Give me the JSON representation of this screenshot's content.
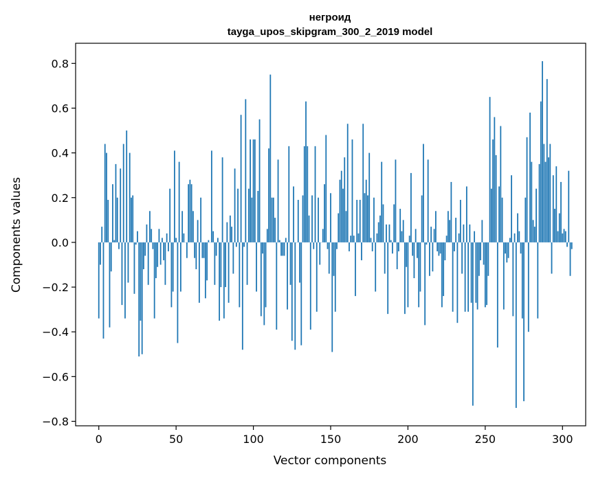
{
  "chart_data": {
    "type": "bar",
    "title": "негроид",
    "subtitle": "tayga_upos_skipgram_300_2_2019 model",
    "xlabel": "Vector components",
    "ylabel": "Components values",
    "xlim": [
      -15,
      315
    ],
    "ylim": [
      -0.82,
      0.89
    ],
    "xticks": [
      0,
      50,
      100,
      150,
      200,
      250,
      300
    ],
    "xtick_labels": [
      "0",
      "50",
      "100",
      "150",
      "200",
      "250",
      "300"
    ],
    "yticks": [
      -0.8,
      -0.6,
      -0.4,
      -0.2,
      0.0,
      0.2,
      0.4,
      0.6,
      0.8
    ],
    "ytick_labels": [
      "−0.8",
      "−0.6",
      "−0.4",
      "−0.2",
      "0.0",
      "0.2",
      "0.4",
      "0.6",
      "0.8"
    ],
    "grid": false,
    "bar_color": "#1f77b4",
    "values": [
      -0.34,
      -0.1,
      0.07,
      -0.43,
      0.44,
      0.4,
      0.19,
      -0.38,
      -0.13,
      0.26,
      0.01,
      0.35,
      0.2,
      -0.03,
      0.33,
      -0.28,
      0.44,
      -0.34,
      0.5,
      -0.18,
      0.4,
      0.2,
      0.21,
      -0.23,
      -0.01,
      0.05,
      -0.51,
      -0.35,
      -0.5,
      -0.12,
      -0.06,
      0.08,
      -0.19,
      0.14,
      0.06,
      -0.03,
      -0.34,
      -0.16,
      -0.11,
      0.06,
      -0.1,
      0.02,
      -0.08,
      -0.19,
      0.04,
      -0.04,
      0.24,
      -0.29,
      -0.22,
      0.41,
      0.02,
      -0.45,
      0.36,
      -0.22,
      0.14,
      0.04,
      0.0,
      -0.07,
      0.26,
      0.28,
      0.26,
      0.14,
      -0.07,
      -0.12,
      0.1,
      -0.27,
      0.2,
      -0.07,
      -0.07,
      -0.25,
      -0.17,
      0.01,
      0.0,
      0.41,
      0.05,
      -0.19,
      -0.06,
      0.02,
      -0.35,
      -0.2,
      0.38,
      -0.34,
      -0.2,
      0.09,
      -0.27,
      0.12,
      0.07,
      -0.14,
      0.33,
      -0.02,
      0.24,
      -0.29,
      0.57,
      -0.48,
      -0.02,
      0.64,
      -0.19,
      0.24,
      0.46,
      0.2,
      0.46,
      0.46,
      -0.22,
      0.23,
      0.55,
      -0.33,
      -0.05,
      -0.37,
      -0.29,
      0.06,
      0.42,
      0.75,
      0.2,
      0.2,
      0.11,
      -0.39,
      0.37,
      0.01,
      -0.06,
      -0.06,
      -0.06,
      0.02,
      -0.3,
      0.43,
      -0.19,
      -0.44,
      0.25,
      -0.48,
      0.0,
      0.19,
      -0.18,
      -0.46,
      0.21,
      0.43,
      0.63,
      0.43,
      0.12,
      -0.39,
      0.21,
      -0.03,
      0.43,
      -0.31,
      0.2,
      -0.1,
      0.0,
      0.06,
      0.26,
      0.48,
      -0.03,
      -0.14,
      0.22,
      -0.49,
      -0.15,
      -0.31,
      -0.03,
      0.13,
      0.28,
      0.32,
      0.24,
      0.38,
      0.14,
      0.53,
      -0.04,
      0.03,
      0.46,
      0.03,
      -0.24,
      0.19,
      0.04,
      0.19,
      -0.08,
      0.53,
      0.22,
      0.28,
      0.21,
      0.4,
      0.02,
      -0.04,
      0.2,
      -0.22,
      0.04,
      0.09,
      0.12,
      0.36,
      0.17,
      -0.14,
      0.08,
      -0.32,
      0.08,
      0.01,
      -0.05,
      0.17,
      0.37,
      -0.12,
      -0.04,
      0.15,
      0.05,
      0.1,
      -0.32,
      -0.11,
      -0.29,
      0.03,
      0.31,
      -0.06,
      -0.16,
      0.06,
      -0.07,
      -0.29,
      -0.22,
      0.21,
      0.44,
      -0.37,
      -0.01,
      0.37,
      -0.15,
      0.07,
      -0.13,
      0.06,
      0.14,
      -0.04,
      -0.06,
      -0.05,
      -0.29,
      -0.24,
      -0.08,
      0.03,
      0.14,
      0.1,
      0.27,
      -0.31,
      -0.04,
      0.11,
      -0.36,
      0.04,
      0.19,
      -0.14,
      0.08,
      -0.31,
      0.25,
      -0.31,
      0.08,
      -0.27,
      -0.73,
      0.05,
      -0.27,
      -0.3,
      -0.15,
      -0.08,
      0.1,
      -0.1,
      -0.29,
      -0.28,
      -0.15,
      0.65,
      0.24,
      0.46,
      0.56,
      0.39,
      -0.47,
      0.25,
      0.52,
      0.2,
      -0.3,
      -0.05,
      -0.09,
      -0.07,
      0.02,
      0.3,
      -0.33,
      0.04,
      -0.74,
      0.13,
      0.05,
      -0.05,
      -0.34,
      -0.71,
      0.2,
      0.47,
      -0.4,
      0.58,
      0.36,
      0.1,
      0.07,
      0.24,
      -0.34,
      0.35,
      0.63,
      0.81,
      0.44,
      0.36,
      0.73,
      0.38,
      0.44,
      -0.14,
      0.3,
      0.15,
      0.34,
      0.05,
      0.13,
      0.27,
      0.04,
      0.06,
      0.05,
      -0.02,
      0.32,
      -0.15,
      -0.03
    ]
  }
}
